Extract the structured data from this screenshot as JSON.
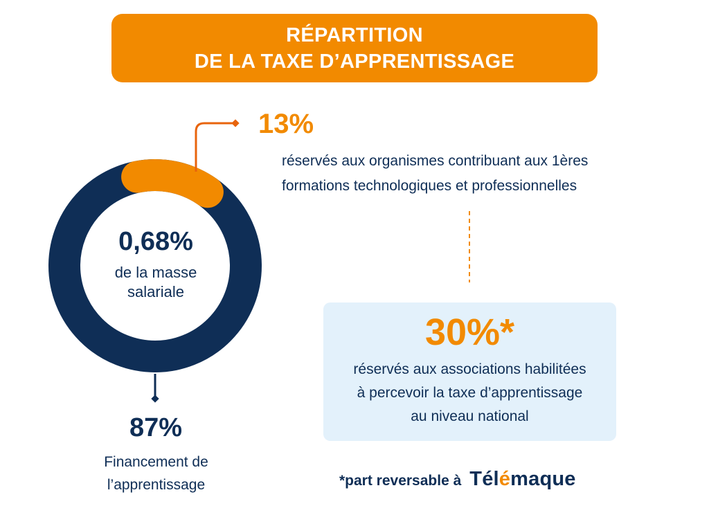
{
  "title": {
    "line1": "RÉPARTITION",
    "line2": "DE LA TAXE D’APPRENTISSAGE"
  },
  "donut": {
    "center_value": "0,68%",
    "center_label_line1": "de la masse",
    "center_label_line2": "salariale"
  },
  "segment_13": {
    "value": "13%",
    "line1": "réservés aux organismes contribuant aux 1ères",
    "line2": "formations technologiques et professionnelles"
  },
  "segment_87": {
    "value": "87%",
    "line1": "Financement de",
    "line2": "l’apprentissage"
  },
  "box_30": {
    "value": "30%*",
    "line1": "réservés aux associations habilitées",
    "line2": "à percevoir la taxe d’apprentissage",
    "line3": "au niveau national"
  },
  "footnote": {
    "text": "*part reversable à",
    "brand_part1": "Tél",
    "brand_accent": "é",
    "brand_part2": "maque"
  },
  "colors": {
    "orange": "#F28A00",
    "navy": "#0F2E56",
    "light_blue": "#E3F1FB"
  },
  "chart_data": {
    "type": "pie",
    "categories": [
      "Financement de l’apprentissage",
      "réservés aux organismes contribuant aux 1ères formations technologiques et professionnelles"
    ],
    "values": [
      87,
      13
    ],
    "colors": [
      "#0F2E56",
      "#F28A00"
    ]
  }
}
